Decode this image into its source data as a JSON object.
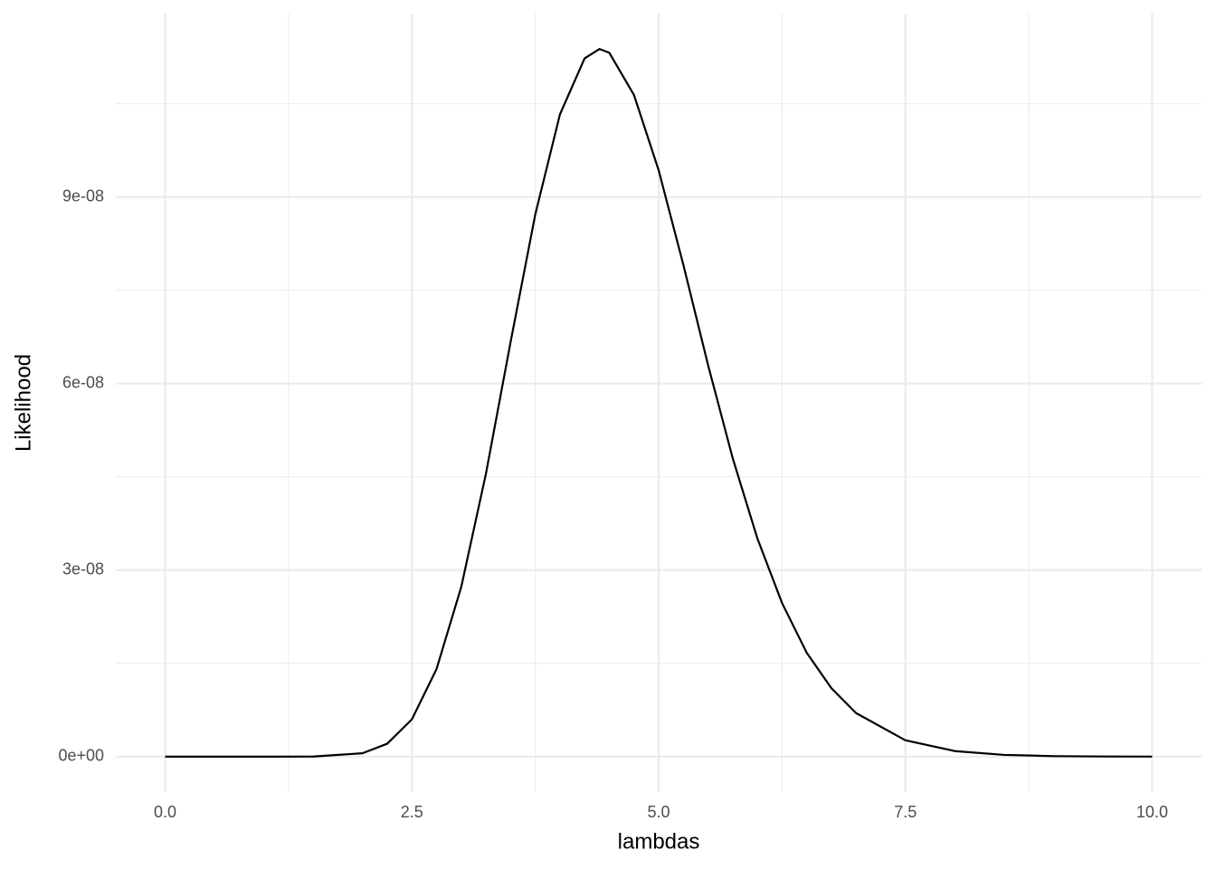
{
  "chart_data": {
    "type": "line",
    "x_label": "lambdas",
    "y_label": "Likelihood",
    "x": [
      0,
      0.5,
      1,
      1.5,
      2,
      2.25,
      2.5,
      2.75,
      3,
      3.25,
      3.5,
      3.75,
      4,
      4.25,
      4.4,
      4.5,
      4.75,
      5,
      5.25,
      5.5,
      5.75,
      6,
      6.25,
      6.5,
      6.75,
      7,
      7.5,
      8,
      8.5,
      9,
      9.5,
      10
    ],
    "series": [
      {
        "name": "likelihood",
        "color": "#000000",
        "values": [
          0,
          5e-20,
          2e-14,
          1.2e-11,
          5.4e-10,
          2.08e-09,
          6e-09,
          1.41e-08,
          2.73e-08,
          4.55e-08,
          6.67e-08,
          8.72e-08,
          1.033e-07,
          1.123e-07,
          1.138e-07,
          1.132e-07,
          1.064e-07,
          9.43e-08,
          7.91e-08,
          6.3e-08,
          4.8e-08,
          3.51e-08,
          2.47e-08,
          1.67e-08,
          1.1e-08,
          7e-09,
          2.63e-09,
          8.9e-10,
          2.8e-10,
          8e-11,
          2.2e-11,
          5.5e-12
        ]
      }
    ],
    "xlim": [
      -0.5,
      10.5
    ],
    "ylim": [
      -5.7e-09,
      1.195e-07
    ],
    "xticks": [
      {
        "value": 0,
        "label": "0.0"
      },
      {
        "value": 2.5,
        "label": "2.5"
      },
      {
        "value": 5,
        "label": "5.0"
      },
      {
        "value": 7.5,
        "label": "7.5"
      },
      {
        "value": 10,
        "label": "10.0"
      }
    ],
    "yticks": [
      {
        "value": 0,
        "label": "0e+00"
      },
      {
        "value": 3e-08,
        "label": "3e-08"
      },
      {
        "value": 6e-08,
        "label": "6e-08"
      },
      {
        "value": 9e-08,
        "label": "9e-08"
      }
    ],
    "xminor": [
      1.25,
      3.75,
      6.25,
      8.75
    ],
    "yminor": [
      1.5e-08,
      4.5e-08,
      7.5e-08,
      1.05e-07
    ],
    "grid": true
  }
}
